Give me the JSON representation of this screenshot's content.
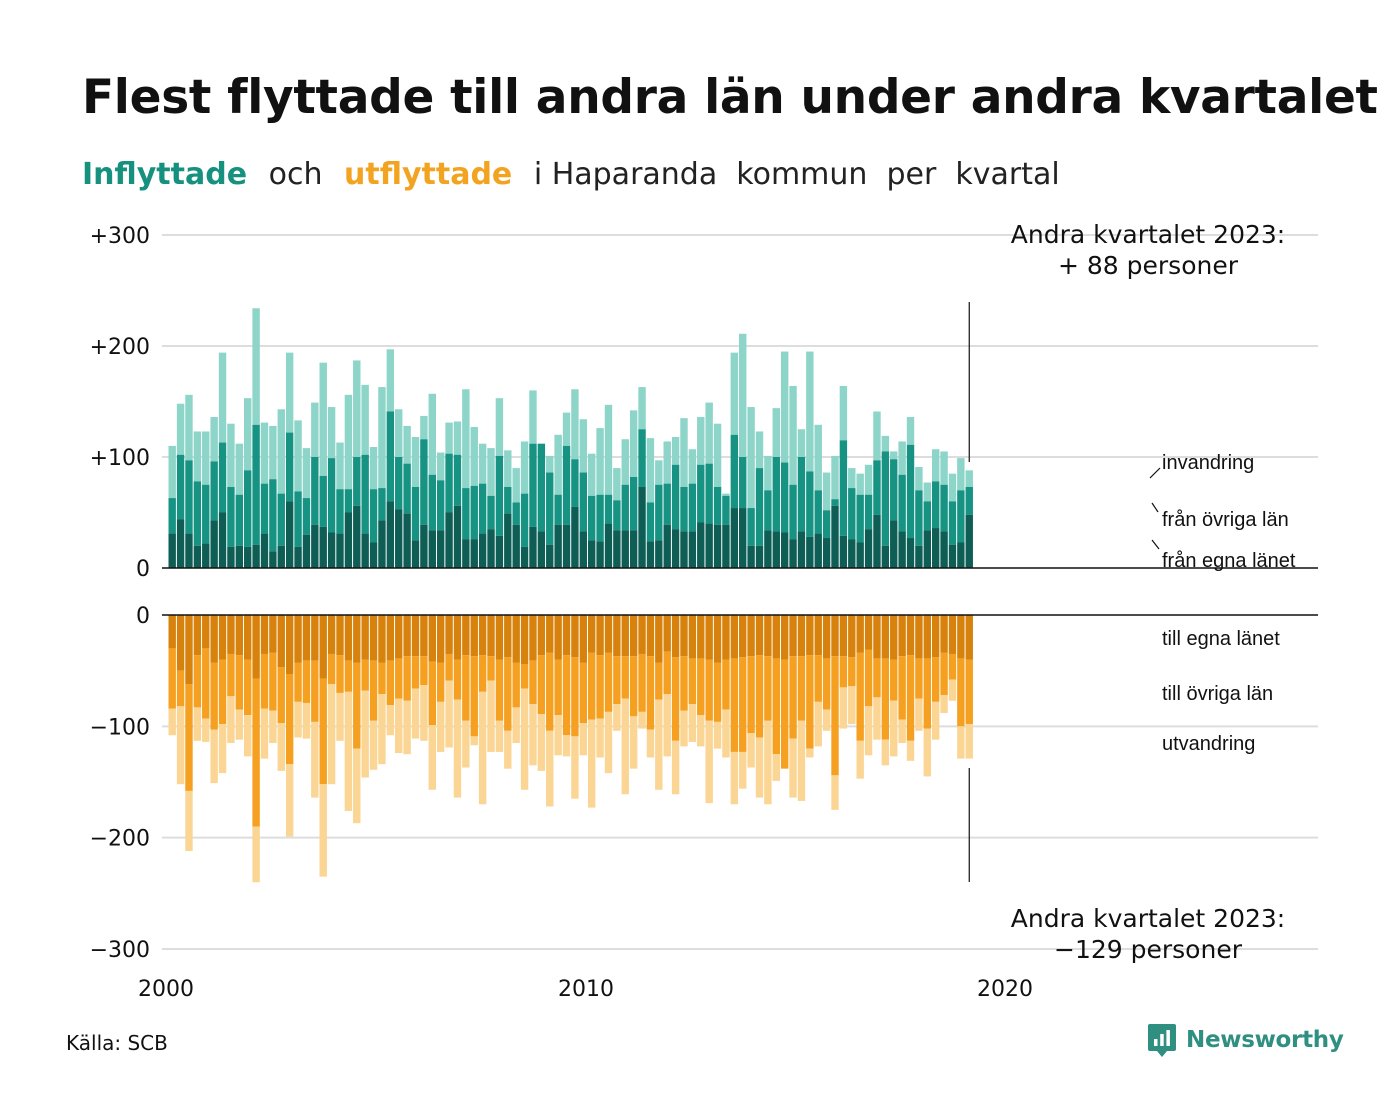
{
  "title": "Flest flyttade till andra län under andra kvartalet",
  "subtitle": {
    "part_in": "Inflyttade",
    "part_and": "och",
    "part_out": "utflyttade",
    "part_rest": "i Haparanda  kommun  per  kvartal"
  },
  "source": "Källa: SCB",
  "brand": "Newsworthy",
  "colors": {
    "in_egna": "#0e5e55",
    "in_ovriga": "#179384",
    "in_invandring": "#8dd4c9",
    "out_egna": "#d6820c",
    "out_ovriga": "#f5a020",
    "out_utvandring": "#fad594",
    "grid": "#dddddd",
    "axis": "#111111"
  },
  "chart_data": {
    "type": "bar",
    "stacked": true,
    "period": "quarterly",
    "x_start": "2000 Q1",
    "x_end": "2023 Q2",
    "x_ticks": [
      "2000",
      "2010",
      "2020"
    ],
    "y_ticks_in": [
      "+300",
      "+200",
      "+100",
      "0"
    ],
    "y_ticks_out": [
      "0",
      "−100",
      "−200",
      "−300"
    ],
    "ylim_in": [
      0,
      300
    ],
    "ylim_out": [
      -300,
      0
    ],
    "grid": true,
    "series_in_labels": {
      "invandring": "invandring",
      "ovriga": "från övriga län",
      "egna": "från egna länet"
    },
    "series_out_labels": {
      "egna": "till egna länet",
      "ovriga": "till övriga län",
      "utvandring": "utvandring"
    },
    "annotation_in": [
      "Andra kvartalet 2023:",
      "+ 88 personer"
    ],
    "annotation_out": [
      "Andra kvartalet 2023:",
      "−129 personer"
    ],
    "in_totals": [
      110,
      148,
      156,
      123,
      123,
      136,
      194,
      130,
      112,
      153,
      234,
      131,
      128,
      143,
      194,
      133,
      108,
      149,
      185,
      145,
      113,
      156,
      187,
      165,
      109,
      163,
      197,
      143,
      128,
      118,
      137,
      157,
      104,
      131,
      132,
      161,
      127,
      112,
      108,
      153,
      106,
      90,
      114,
      160,
      112,
      101,
      120,
      140,
      161,
      134,
      103,
      126,
      147,
      90,
      116,
      142,
      163,
      117,
      97,
      114,
      118,
      135,
      107,
      136,
      149,
      130,
      67,
      194,
      211,
      145,
      123,
      101,
      144,
      195,
      164,
      125,
      195,
      129,
      86,
      101,
      164,
      90,
      85,
      93,
      141,
      119,
      105,
      114,
      136,
      91,
      77,
      107,
      105,
      85,
      99,
      88
    ],
    "in_cum_ovriga": [
      63,
      102,
      97,
      78,
      75,
      96,
      113,
      73,
      66,
      88,
      129,
      76,
      80,
      67,
      122,
      69,
      63,
      100,
      83,
      99,
      71,
      71,
      100,
      102,
      71,
      72,
      141,
      100,
      94,
      73,
      116,
      84,
      79,
      103,
      102,
      72,
      74,
      76,
      65,
      101,
      73,
      59,
      67,
      112,
      112,
      86,
      66,
      110,
      98,
      86,
      65,
      66,
      66,
      61,
      75,
      82,
      125,
      59,
      75,
      76,
      93,
      73,
      76,
      93,
      94,
      73,
      65,
      120,
      100,
      54,
      90,
      70,
      100,
      95,
      75,
      100,
      87,
      70,
      52,
      62,
      115,
      72,
      66,
      66,
      97,
      105,
      98,
      84,
      111,
      70,
      60,
      78,
      75,
      60,
      70,
      73
    ],
    "in_cum_egna": [
      31,
      44,
      31,
      20,
      22,
      43,
      50,
      19,
      20,
      19,
      21,
      31,
      15,
      20,
      60,
      19,
      30,
      39,
      37,
      32,
      31,
      50,
      56,
      31,
      23,
      43,
      60,
      53,
      49,
      25,
      39,
      34,
      34,
      50,
      56,
      26,
      26,
      31,
      35,
      29,
      49,
      39,
      19,
      37,
      33,
      21,
      39,
      39,
      55,
      33,
      25,
      24,
      40,
      34,
      34,
      34,
      73,
      24,
      25,
      39,
      35,
      33,
      33,
      41,
      40,
      39,
      39,
      54,
      54,
      20,
      20,
      34,
      33,
      32,
      26,
      33,
      28,
      31,
      27,
      56,
      29,
      26,
      23,
      35,
      48,
      20,
      43,
      33,
      27,
      20,
      34,
      36,
      33,
      21,
      23,
      48
    ],
    "out_totals": [
      108,
      152,
      212,
      113,
      114,
      151,
      142,
      115,
      112,
      127,
      240,
      129,
      115,
      140,
      199,
      110,
      111,
      164,
      235,
      152,
      113,
      176,
      187,
      146,
      139,
      134,
      108,
      124,
      125,
      111,
      113,
      157,
      123,
      119,
      164,
      137,
      117,
      170,
      123,
      123,
      138,
      115,
      157,
      135,
      140,
      172,
      126,
      127,
      165,
      126,
      173,
      128,
      142,
      104,
      161,
      138,
      102,
      128,
      157,
      127,
      161,
      118,
      114,
      118,
      169,
      120,
      128,
      170,
      156,
      137,
      164,
      170,
      149,
      134,
      164,
      167,
      128,
      118,
      104,
      175,
      102,
      98,
      147,
      126,
      112,
      135,
      127,
      115,
      131,
      104,
      145,
      112,
      88,
      77,
      129,
      129
    ],
    "out_cum_ovriga": [
      84,
      82,
      158,
      83,
      93,
      103,
      98,
      73,
      85,
      90,
      190,
      84,
      86,
      97,
      134,
      78,
      79,
      96,
      152,
      62,
      70,
      69,
      120,
      68,
      95,
      71,
      81,
      75,
      77,
      66,
      63,
      99,
      78,
      59,
      76,
      95,
      109,
      69,
      59,
      95,
      104,
      83,
      66,
      80,
      89,
      104,
      90,
      108,
      109,
      97,
      94,
      93,
      87,
      80,
      75,
      91,
      87,
      103,
      76,
      71,
      113,
      86,
      80,
      90,
      95,
      96,
      85,
      123,
      123,
      106,
      110,
      95,
      125,
      138,
      111,
      95,
      120,
      78,
      85,
      144,
      65,
      64,
      113,
      82,
      74,
      112,
      77,
      94,
      113,
      75,
      102,
      78,
      72,
      58,
      100,
      98
    ],
    "out_cum_egna": [
      30,
      50,
      62,
      36,
      30,
      43,
      40,
      35,
      36,
      40,
      57,
      35,
      34,
      47,
      53,
      43,
      41,
      41,
      57,
      35,
      36,
      41,
      43,
      40,
      41,
      43,
      41,
      39,
      37,
      37,
      37,
      42,
      43,
      35,
      40,
      36,
      37,
      36,
      37,
      40,
      38,
      43,
      44,
      41,
      36,
      34,
      40,
      36,
      38,
      43,
      34,
      36,
      34,
      37,
      37,
      37,
      35,
      37,
      43,
      33,
      38,
      37,
      39,
      39,
      40,
      43,
      40,
      39,
      38,
      37,
      36,
      37,
      39,
      40,
      37,
      37,
      36,
      36,
      39,
      37,
      37,
      38,
      34,
      31,
      39,
      39,
      40,
      37,
      36,
      39,
      39,
      38,
      34,
      35,
      39,
      40
    ]
  }
}
